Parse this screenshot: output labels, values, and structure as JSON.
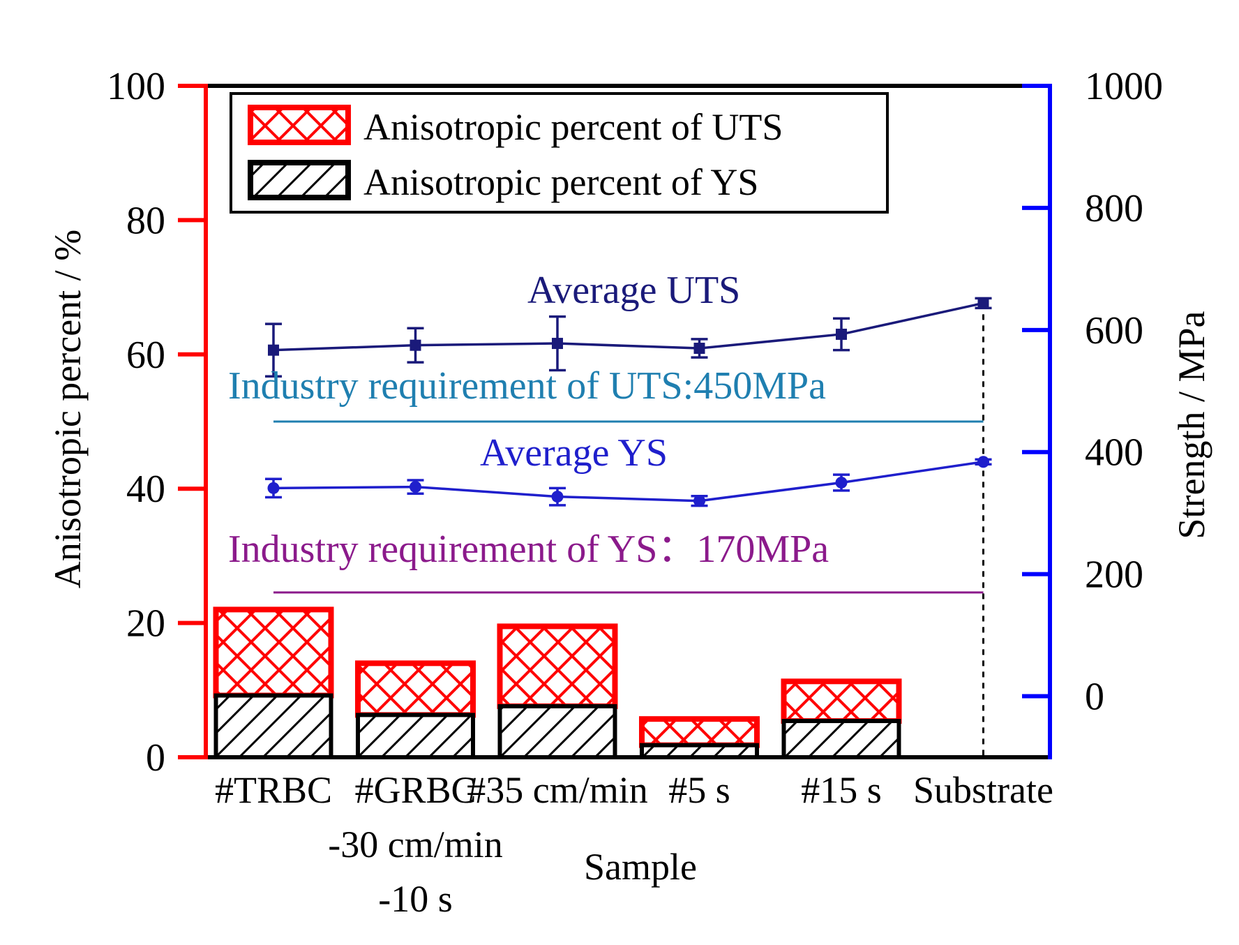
{
  "chart_data": {
    "type": "bar",
    "xlabel": "Sample",
    "ylabel_left": "Anisotropic percent / %",
    "ylabel_right": "Strength / MPa",
    "ylim_left": [
      0,
      100
    ],
    "ylim_right": [
      -100,
      1000
    ],
    "left_ticks": [
      0,
      20,
      40,
      60,
      80,
      100
    ],
    "right_ticks": [
      0,
      200,
      400,
      600,
      800,
      1000
    ],
    "categories": [
      {
        "lines": [
          "#TRBC"
        ]
      },
      {
        "lines": [
          "#GRBC",
          "-30 cm/min",
          "-10 s"
        ]
      },
      {
        "lines": [
          "#35 cm/min"
        ]
      },
      {
        "lines": [
          "#5 s"
        ]
      },
      {
        "lines": [
          "#15 s"
        ]
      },
      {
        "lines": [
          "Substrate"
        ]
      }
    ],
    "bar_series": [
      {
        "name": "Anisotropic percent of YS",
        "axis": "left",
        "values": [
          9.2,
          6.3,
          7.6,
          1.8,
          5.4,
          null
        ]
      },
      {
        "name": "Anisotropic percent of UTS",
        "axis": "left",
        "values": [
          22.0,
          14.0,
          19.5,
          5.7,
          11.3,
          null
        ]
      }
    ],
    "line_series": [
      {
        "name": "Average UTS",
        "axis": "right",
        "color": "#1a1a7a",
        "values": [
          567,
          575,
          578,
          570,
          593,
          644
        ],
        "errors": [
          43,
          28,
          44,
          15,
          26,
          8
        ]
      },
      {
        "name": "Average YS",
        "axis": "right",
        "color": "#1f1fcc",
        "values": [
          341,
          343,
          327,
          320,
          350,
          384
        ],
        "errors": [
          15,
          11,
          14,
          8,
          13,
          4
        ]
      }
    ],
    "reference_lines": [
      {
        "label": "Industry requirement of UTS:450MPa",
        "value": 450,
        "axis": "right",
        "color": "#1f7fb0"
      },
      {
        "label": "Industry requirement of YS：170MPa",
        "value": 170,
        "axis": "right",
        "color": "#8b1a8b"
      }
    ],
    "legend": {
      "placement": "top-left",
      "items": [
        "Anisotropic percent of UTS",
        "Anisotropic percent of YS"
      ]
    },
    "colors": {
      "left_axis": "#ff0000",
      "right_axis": "#0000ff",
      "uts_bar": "#ff0000",
      "ys_bar": "#000000"
    }
  }
}
